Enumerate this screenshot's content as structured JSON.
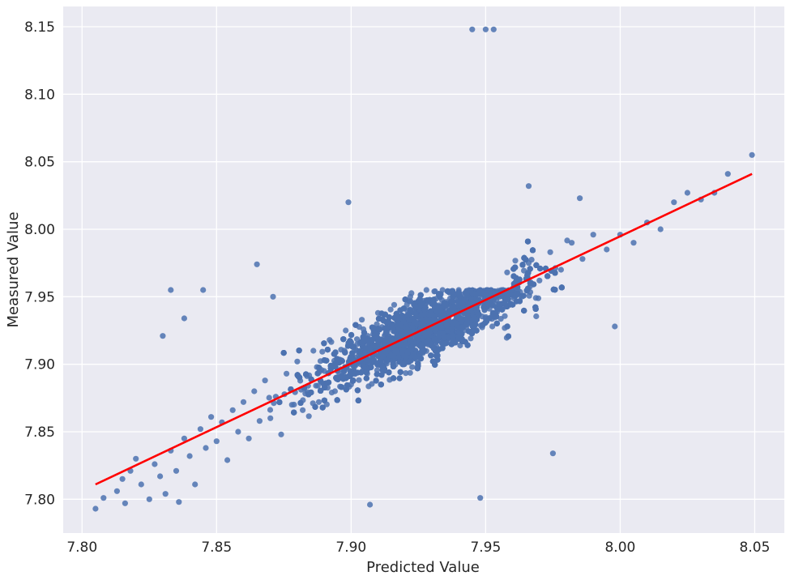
{
  "chart_data": {
    "type": "scatter",
    "title": "",
    "xlabel": "Predicted Value",
    "ylabel": "Measured Value",
    "xlim": [
      7.793,
      8.061
    ],
    "ylim": [
      7.775,
      8.165
    ],
    "xticks": [
      7.8,
      7.85,
      7.9,
      7.95,
      8.0,
      8.05
    ],
    "yticks": [
      7.8,
      7.85,
      7.9,
      7.95,
      8.0,
      8.05,
      8.1,
      8.15
    ],
    "xtick_labels": [
      "7.80",
      "7.85",
      "7.90",
      "7.95",
      "8.00",
      "8.05"
    ],
    "ytick_labels": [
      "7.80",
      "7.85",
      "7.90",
      "7.95",
      "8.00",
      "8.05",
      "8.10",
      "8.15"
    ],
    "grid": true,
    "legend": "none",
    "point_color": "#4c72b0",
    "regression_color": "#ff0000",
    "background_color": "#eaeaf2",
    "grid_color": "#ffffff",
    "regression_line": {
      "x": [
        7.805,
        8.049
      ],
      "y": [
        7.811,
        8.041
      ]
    },
    "point_count_approx": 5000,
    "points": [
      [
        7.805,
        7.793
      ],
      [
        7.808,
        7.801
      ],
      [
        7.813,
        7.806
      ],
      [
        7.815,
        7.815
      ],
      [
        7.816,
        7.797
      ],
      [
        7.818,
        7.821
      ],
      [
        7.82,
        7.83
      ],
      [
        7.822,
        7.811
      ],
      [
        7.825,
        7.8
      ],
      [
        7.827,
        7.826
      ],
      [
        7.829,
        7.817
      ],
      [
        7.831,
        7.804
      ],
      [
        7.833,
        7.836
      ],
      [
        7.835,
        7.821
      ],
      [
        7.836,
        7.798
      ],
      [
        7.838,
        7.845
      ],
      [
        7.84,
        7.832
      ],
      [
        7.842,
        7.811
      ],
      [
        7.844,
        7.852
      ],
      [
        7.846,
        7.838
      ],
      [
        7.848,
        7.861
      ],
      [
        7.85,
        7.843
      ],
      [
        7.852,
        7.857
      ],
      [
        7.854,
        7.829
      ],
      [
        7.856,
        7.866
      ],
      [
        7.858,
        7.85
      ],
      [
        7.86,
        7.872
      ],
      [
        7.862,
        7.845
      ],
      [
        7.864,
        7.88
      ],
      [
        7.866,
        7.858
      ],
      [
        7.868,
        7.888
      ],
      [
        7.87,
        7.86
      ],
      [
        7.872,
        7.876
      ],
      [
        7.874,
        7.848
      ],
      [
        7.876,
        7.893
      ],
      [
        7.878,
        7.87
      ],
      [
        7.88,
        7.902
      ],
      [
        7.882,
        7.866
      ],
      [
        7.884,
        7.884
      ],
      [
        7.886,
        7.91
      ],
      [
        7.888,
        7.872
      ],
      [
        7.89,
        7.895
      ],
      [
        7.892,
        7.918
      ],
      [
        7.894,
        7.88
      ],
      [
        7.896,
        7.902
      ],
      [
        7.898,
        7.925
      ],
      [
        7.9,
        7.885
      ],
      [
        7.902,
        7.91
      ],
      [
        7.904,
        7.933
      ],
      [
        7.906,
        7.893
      ],
      [
        7.908,
        7.914
      ],
      [
        7.91,
        7.938
      ],
      [
        7.912,
        7.897
      ],
      [
        7.914,
        7.921
      ],
      [
        7.916,
        7.944
      ],
      [
        7.918,
        7.904
      ],
      [
        7.92,
        7.926
      ],
      [
        7.922,
        7.95
      ],
      [
        7.924,
        7.91
      ],
      [
        7.926,
        7.932
      ],
      [
        7.928,
        7.955
      ],
      [
        7.93,
        7.914
      ],
      [
        7.932,
        7.937
      ],
      [
        7.934,
        7.955
      ],
      [
        7.936,
        7.92
      ],
      [
        7.938,
        7.942
      ],
      [
        7.94,
        7.955
      ],
      [
        7.942,
        7.925
      ],
      [
        7.944,
        7.948
      ],
      [
        7.946,
        7.932
      ],
      [
        7.948,
        7.955
      ],
      [
        7.95,
        7.935
      ],
      [
        7.952,
        7.955
      ],
      [
        7.955,
        7.945
      ],
      [
        7.958,
        7.968
      ],
      [
        7.962,
        7.955
      ],
      [
        7.966,
        7.975
      ],
      [
        7.97,
        7.962
      ],
      [
        7.974,
        7.983
      ],
      [
        7.978,
        7.97
      ],
      [
        7.982,
        7.99
      ],
      [
        7.986,
        7.978
      ],
      [
        7.99,
        7.996
      ],
      [
        7.995,
        7.985
      ],
      [
        8.0,
        7.996
      ],
      [
        8.005,
        7.99
      ],
      [
        8.01,
        8.005
      ],
      [
        8.015,
        8.0
      ],
      [
        8.02,
        8.02
      ],
      [
        8.025,
        8.027
      ],
      [
        8.03,
        8.022
      ],
      [
        8.035,
        8.027
      ],
      [
        8.04,
        8.041
      ],
      [
        8.049,
        8.055
      ],
      [
        7.833,
        7.955
      ],
      [
        7.845,
        7.955
      ],
      [
        7.899,
        8.02
      ],
      [
        7.945,
        8.148
      ],
      [
        7.95,
        8.148
      ],
      [
        7.953,
        8.148
      ],
      [
        7.966,
        8.032
      ],
      [
        7.985,
        8.023
      ],
      [
        7.907,
        7.796
      ],
      [
        7.948,
        7.801
      ],
      [
        7.975,
        7.834
      ],
      [
        7.998,
        7.928
      ],
      [
        7.865,
        7.974
      ],
      [
        7.838,
        7.934
      ],
      [
        7.83,
        7.921
      ],
      [
        7.871,
        7.95
      ]
    ]
  }
}
